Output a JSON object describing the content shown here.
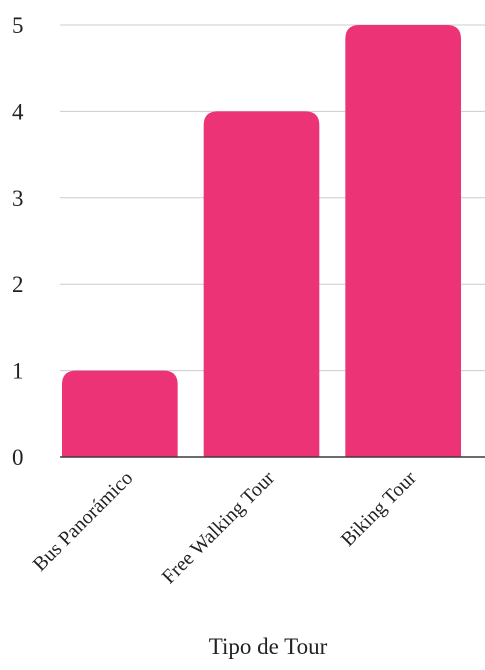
{
  "chart_data": {
    "type": "bar",
    "categories": [
      "Bus Panorámico",
      "Free Walking Tour",
      "Biking Tour"
    ],
    "values": [
      1,
      4,
      5
    ],
    "title": "",
    "xlabel": "Tipo de Tour",
    "ylabel": "",
    "ylim": [
      0,
      5
    ],
    "yticks": [
      0,
      1,
      2,
      3,
      4,
      5
    ],
    "grid": true,
    "legend": "none",
    "bar_color": "#EC3376",
    "grid_color": "#cccccc"
  }
}
